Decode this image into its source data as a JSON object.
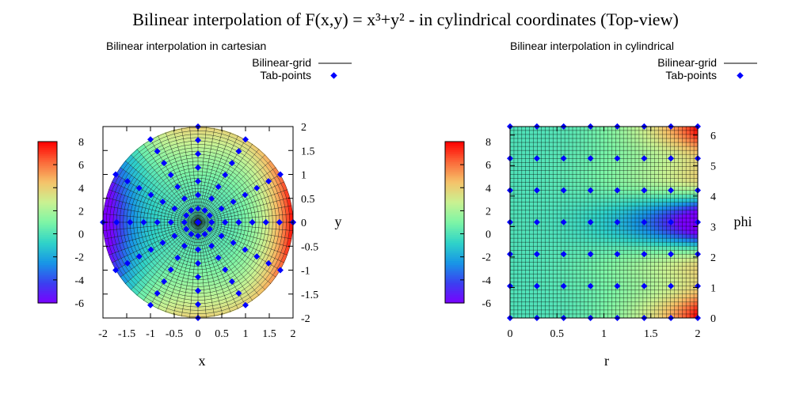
{
  "title": "Bilinear interpolation of F(x,y) = x³+y² - in cylindrical coordinates (Top-view)",
  "colors": {
    "point": "#0000ff",
    "grid_line": "#000000",
    "palette": [
      "#7a00ff",
      "#3b40f0",
      "#1896e6",
      "#2fd3c8",
      "#7cf5a6",
      "#c9f292",
      "#f5c36a",
      "#fb6a3a",
      "#ff0000"
    ]
  },
  "chart_data": [
    {
      "type": "heatmap",
      "subtitle": "Bilinear interpolation in cartesian",
      "xlabel": "x",
      "ylabel": "y",
      "xlim": [
        -2,
        2
      ],
      "ylim": [
        -2,
        2
      ],
      "xticks": [
        "-2",
        "-1.5",
        "-1",
        "-0.5",
        "0",
        "0.5",
        "1",
        "1.5",
        "2"
      ],
      "yticks": [
        "-2",
        "-1.5",
        "-1",
        "-0.5",
        "0",
        "0.5",
        "1",
        "1.5",
        "2"
      ],
      "colorbar": {
        "range": [
          -6,
          8
        ],
        "ticks": [
          "-6",
          "-4",
          "-2",
          "0",
          "2",
          "4",
          "6",
          "8"
        ]
      },
      "legend": {
        "placement": "top-right",
        "entries": [
          "Bilinear-grid",
          "Tab-points"
        ]
      },
      "function": "x³+y²",
      "tab_points": {
        "r": [
          0,
          0.286,
          0.571,
          0.857,
          1.143,
          1.429,
          1.714,
          2.0
        ],
        "phi_deg": [
          0,
          30,
          60,
          90,
          120,
          150,
          180,
          210,
          240,
          270,
          300,
          330,
          360
        ]
      }
    },
    {
      "type": "heatmap",
      "subtitle": "Bilinear interpolation in cylindrical",
      "xlabel": "r",
      "ylabel": "phi",
      "xlim": [
        0,
        2
      ],
      "ylim": [
        0,
        6.28
      ],
      "xticks": [
        "0",
        "0.5",
        "1",
        "1.5",
        "2"
      ],
      "yticks": [
        "0",
        "1",
        "2",
        "3",
        "4",
        "5",
        "6"
      ],
      "colorbar": {
        "range": [
          -6,
          8
        ],
        "ticks": [
          "-6",
          "-4",
          "-2",
          "0",
          "2",
          "4",
          "6",
          "8"
        ]
      },
      "legend": {
        "placement": "top-right",
        "entries": [
          "Bilinear-grid",
          "Tab-points"
        ]
      },
      "function": "x³+y²",
      "tab_points": {
        "r": [
          0,
          0.286,
          0.571,
          0.857,
          1.143,
          1.429,
          1.714,
          2.0
        ],
        "phi": [
          0,
          1.047,
          2.094,
          3.142,
          4.189,
          5.236,
          6.283
        ]
      }
    }
  ]
}
